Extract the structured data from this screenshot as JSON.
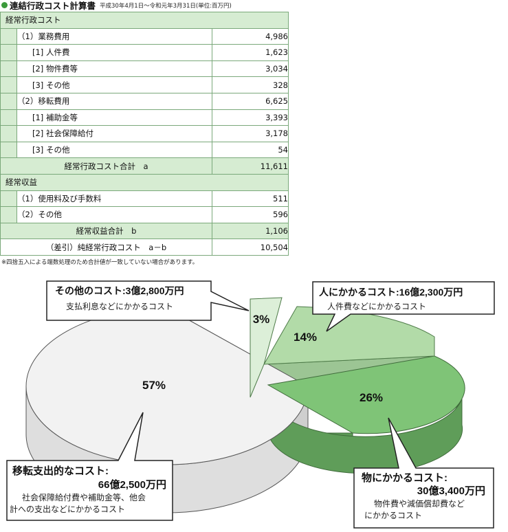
{
  "header": {
    "title": "連結行政コスト計算書",
    "period": "平成30年4月1日～令和元年3月31日(単位:百万円)"
  },
  "table": {
    "section1": "経常行政コスト",
    "r1": {
      "label": "（1）業務費用",
      "value": "4,986"
    },
    "r2": {
      "label": "[1] 人件費",
      "value": "1,623"
    },
    "r3": {
      "label": "[2] 物件費等",
      "value": "3,034"
    },
    "r4": {
      "label": "[3] その他",
      "value": "328"
    },
    "r5": {
      "label": "（2）移転費用",
      "value": "6,625"
    },
    "r6": {
      "label": "[1] 補助金等",
      "value": "3,393"
    },
    "r7": {
      "label": "[2] 社会保障給付",
      "value": "3,178"
    },
    "r8": {
      "label": "[3] その他",
      "value": "54"
    },
    "t1": {
      "label": "経常行政コスト合計　a",
      "value": "11,611"
    },
    "section2": "経常収益",
    "r9": {
      "label": "（1）使用料及び手数料",
      "value": "511"
    },
    "r10": {
      "label": "（2）その他",
      "value": "596"
    },
    "t2": {
      "label": "経常収益合計　b",
      "value": "1,106"
    },
    "net": {
      "label": "（差引）純経常行政コスト　a－b",
      "value": "10,504"
    }
  },
  "note": "※四捨五入による端数処理のため合計値が一致していない場合があります。",
  "chart_data": {
    "type": "pie",
    "slices": [
      {
        "key": "other",
        "pct_label": "3%",
        "value": 3,
        "title": "その他のコスト:3億2,800万円",
        "desc": "支払利息などにかかるコスト",
        "color": "#dcefd8"
      },
      {
        "key": "personnel",
        "pct_label": "14%",
        "value": 14,
        "title": "人にかかるコスト:16億2,300万円",
        "desc": "人件費などにかかるコスト",
        "color": "#b2dba8"
      },
      {
        "key": "goods",
        "pct_label": "26%",
        "value": 26,
        "title1": "物にかかるコスト:",
        "title2": "30億3,400万円",
        "desc1": "物件費や減価償却費など",
        "desc2": "にかかるコスト",
        "color": "#7fc477"
      },
      {
        "key": "transfer",
        "pct_label": "57%",
        "value": 57,
        "title1": "移転支出的なコスト:",
        "title2": "66億2,500万円",
        "desc1": "社会保障給付費や補助金等、他会",
        "desc2": "計への支出などにかかるコスト",
        "color": "#f2f2f2"
      }
    ]
  }
}
